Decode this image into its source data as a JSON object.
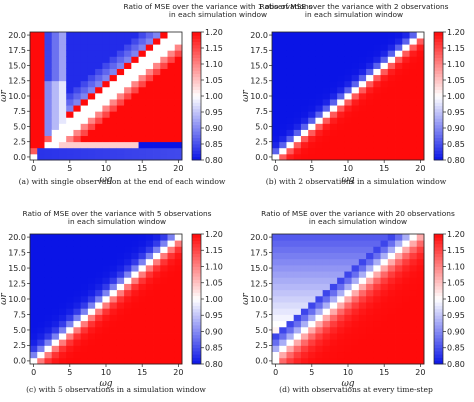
{
  "chart_data": [
    {
      "type": "heatmap",
      "title": [
        "Ratio of MSE over the variance with 1 observations",
        "in each simulation window"
      ],
      "caption": "(a) with single observation at the end of each window",
      "xlabel": "ωg",
      "ylabel": "ωr",
      "xticks": [
        "0",
        "10",
        "20"
      ],
      "xticks_minor_labels": [
        "5",
        "15"
      ],
      "yticks": [
        "0.0",
        "2.5",
        "5.0",
        "7.5",
        "10.0",
        "12.5",
        "15.0",
        "17.5",
        "20.0"
      ],
      "xlim": [
        0,
        20
      ],
      "ylim": [
        0,
        20
      ],
      "grid_size": 21,
      "colorbar": {
        "ticks": [
          "0.80",
          "0.85",
          "0.90",
          "0.95",
          "1.00",
          "1.05",
          "1.10",
          "1.15",
          "1.20"
        ],
        "range": [
          0.8,
          1.2
        ]
      },
      "observations_per_window": 1
    },
    {
      "type": "heatmap",
      "title": [
        "Ratio of MSE over the variance with 2 observations",
        "in each simulation window"
      ],
      "caption": "(b) with 2 observations in a simulation window",
      "xlabel": "ωg",
      "ylabel": "ωr",
      "xticks": [
        "0",
        "5",
        "10",
        "15",
        "20"
      ],
      "yticks": [
        "0.0",
        "2.5",
        "5.0",
        "7.5",
        "10.0",
        "12.5",
        "15.0",
        "17.5",
        "20.0"
      ],
      "xlim": [
        0,
        20
      ],
      "ylim": [
        0,
        20
      ],
      "grid_size": 21,
      "colorbar": {
        "ticks": [
          "0.80",
          "0.85",
          "0.90",
          "0.95",
          "1.00",
          "1.05",
          "1.10",
          "1.15",
          "1.20"
        ],
        "range": [
          0.8,
          1.2
        ]
      },
      "observations_per_window": 2
    },
    {
      "type": "heatmap",
      "title": [
        "Ratio of MSE over the variance with 5 observations",
        "in each simulation window"
      ],
      "caption": "(c) with 5 observations in a simulation window",
      "xlabel": "ωg",
      "ylabel": "ωr",
      "xticks": [
        "0",
        "5",
        "10",
        "15",
        "20"
      ],
      "yticks": [
        "0.0",
        "2.5",
        "5.0",
        "7.5",
        "10.0",
        "12.5",
        "15.0",
        "17.5",
        "20.0"
      ],
      "xlim": [
        0,
        20
      ],
      "ylim": [
        0,
        20
      ],
      "grid_size": 21,
      "colorbar": {
        "ticks": [
          "0.80",
          "0.85",
          "0.90",
          "0.95",
          "1.00",
          "1.05",
          "1.10",
          "1.15",
          "1.20"
        ],
        "range": [
          0.8,
          1.2
        ]
      },
      "observations_per_window": 5
    },
    {
      "type": "heatmap",
      "title": [
        "Ratio of MSE over the variance with 20 observations",
        "in each simulation window"
      ],
      "caption": "(d) with observations at every time-step",
      "xlabel": "ωg",
      "ylabel": "ωr",
      "xticks": [
        "0",
        "5",
        "10",
        "15",
        "20"
      ],
      "yticks": [
        "0.0",
        "2.5",
        "5.0",
        "7.5",
        "10.0",
        "12.5",
        "15.0",
        "17.5",
        "20.0"
      ],
      "xlim": [
        0,
        20
      ],
      "ylim": [
        0,
        20
      ],
      "grid_size": 21,
      "colorbar": {
        "ticks": [
          "0.80",
          "0.85",
          "0.90",
          "0.95",
          "1.00",
          "1.05",
          "1.10",
          "1.15",
          "1.20"
        ],
        "range": [
          0.8,
          1.2
        ]
      },
      "observations_per_window": 20
    }
  ],
  "colors": {
    "low": "#0a14e6",
    "mid": "#ffffff",
    "high": "#ff0a0a",
    "axis": "#222222"
  }
}
